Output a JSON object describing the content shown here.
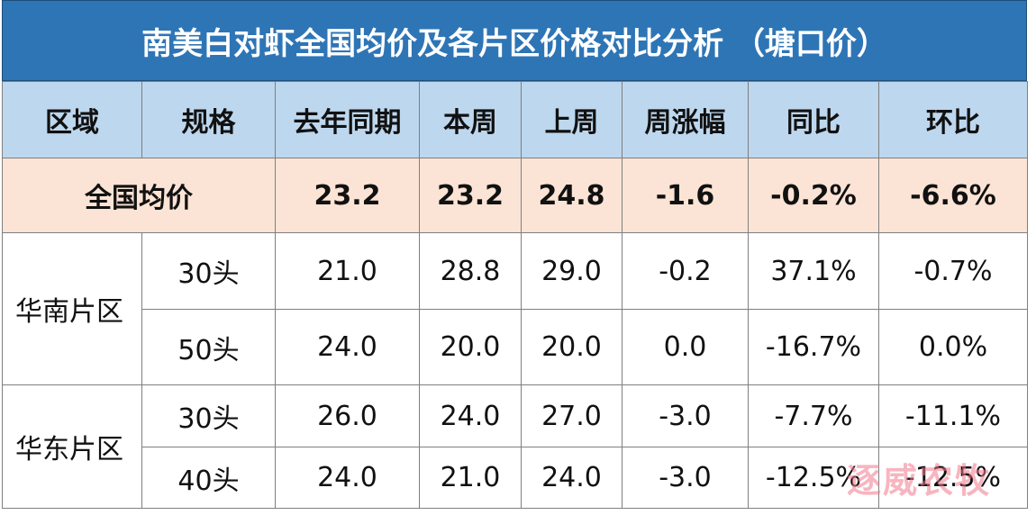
{
  "title": "南美白对虾全国均价及各片区价格对比分析 （塘口价）",
  "header": [
    "区域",
    "规格",
    "去年同期",
    "本周",
    "上周",
    "周涨幅",
    "同比",
    "环比"
  ],
  "national": {
    "label": "全国均价",
    "cells": [
      "23.2",
      "23.2",
      "24.8",
      "-1.6",
      "-0.2%",
      "-6.6%"
    ]
  },
  "regions": [
    {
      "name": "华南片区",
      "rows": [
        [
          "30头",
          "21.0",
          "28.8",
          "29.0",
          "-0.2",
          "37.1%",
          "-0.7%"
        ],
        [
          "50头",
          "24.0",
          "20.0",
          "20.0",
          "0.0",
          "-16.7%",
          "0.0%"
        ]
      ]
    },
    {
      "name": "华东片区",
      "rows": [
        [
          "30头",
          "26.0",
          "24.0",
          "27.0",
          "-3.0",
          "-7.7%",
          "-11.1%"
        ],
        [
          "40头",
          "24.0",
          "21.0",
          "24.0",
          "-3.0",
          "-12.5%",
          "-12.5%"
        ]
      ]
    }
  ],
  "watermark": "逐威农牧"
}
